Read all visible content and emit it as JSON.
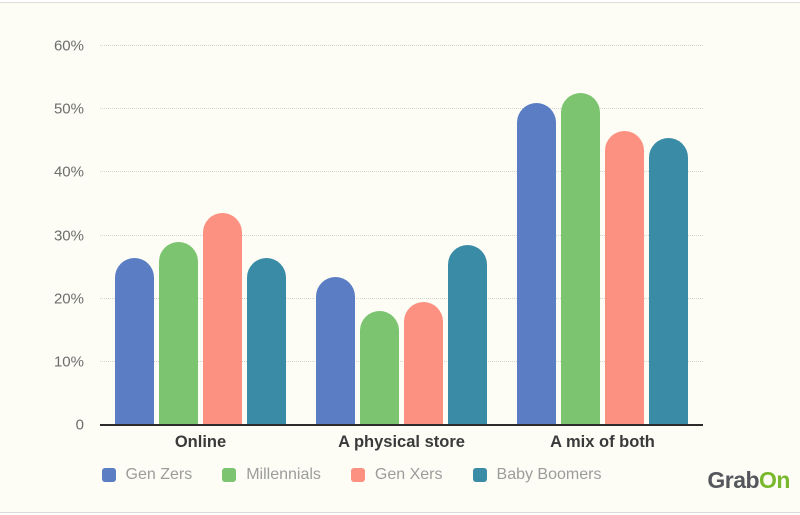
{
  "chart_data": {
    "type": "bar",
    "title": "",
    "categories": [
      "Online",
      "A physical store",
      "A mix of both"
    ],
    "series": [
      {
        "name": "Gen Zers",
        "color": "#5a7dc3",
        "values": [
          26.5,
          23.5,
          51.0
        ]
      },
      {
        "name": "Millennials",
        "color": "#7dc470",
        "values": [
          29.0,
          18.0,
          52.5
        ]
      },
      {
        "name": "Gen Xers",
        "color": "#fd9181",
        "values": [
          33.5,
          19.5,
          46.5
        ]
      },
      {
        "name": "Baby Boomers",
        "color": "#3a8ca6",
        "values": [
          26.5,
          28.5,
          45.5
        ]
      }
    ],
    "xlabel": "",
    "ylabel": "",
    "ylim": [
      0,
      60
    ],
    "y_ticks": [
      {
        "label": "60%",
        "value": 60
      },
      {
        "label": "50%",
        "value": 50
      },
      {
        "label": "40%",
        "value": 40
      },
      {
        "label": "30%",
        "value": 30
      },
      {
        "label": "20%",
        "value": 20
      },
      {
        "label": "10%",
        "value": 10
      },
      {
        "label": "0",
        "value": 0
      }
    ],
    "grid": "horizontal-dotted",
    "legend_position": "bottom",
    "colors": {
      "background": "#fdfdf6",
      "gridline": "#d4d4cf",
      "axis_line": "#2b2b2b",
      "tick_label": "#6d6d6d",
      "category_label": "#3a3a3a",
      "legend_label": "#9c9c9c"
    }
  },
  "logo": {
    "grab": "Grab",
    "on": "On",
    "grab_color": "#55575c",
    "on_color": "#79b82c"
  }
}
